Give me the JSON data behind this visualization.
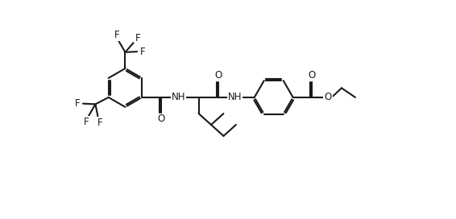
{
  "bg_color": "#ffffff",
  "line_color": "#1a1a1a",
  "line_width": 1.5,
  "font_size": 8.5,
  "font_family": "DejaVu Sans",
  "figsize": [
    5.66,
    2.72
  ],
  "dpi": 100,
  "xlim": [
    -0.5,
    11.5
  ],
  "ylim": [
    -2.8,
    4.2
  ]
}
